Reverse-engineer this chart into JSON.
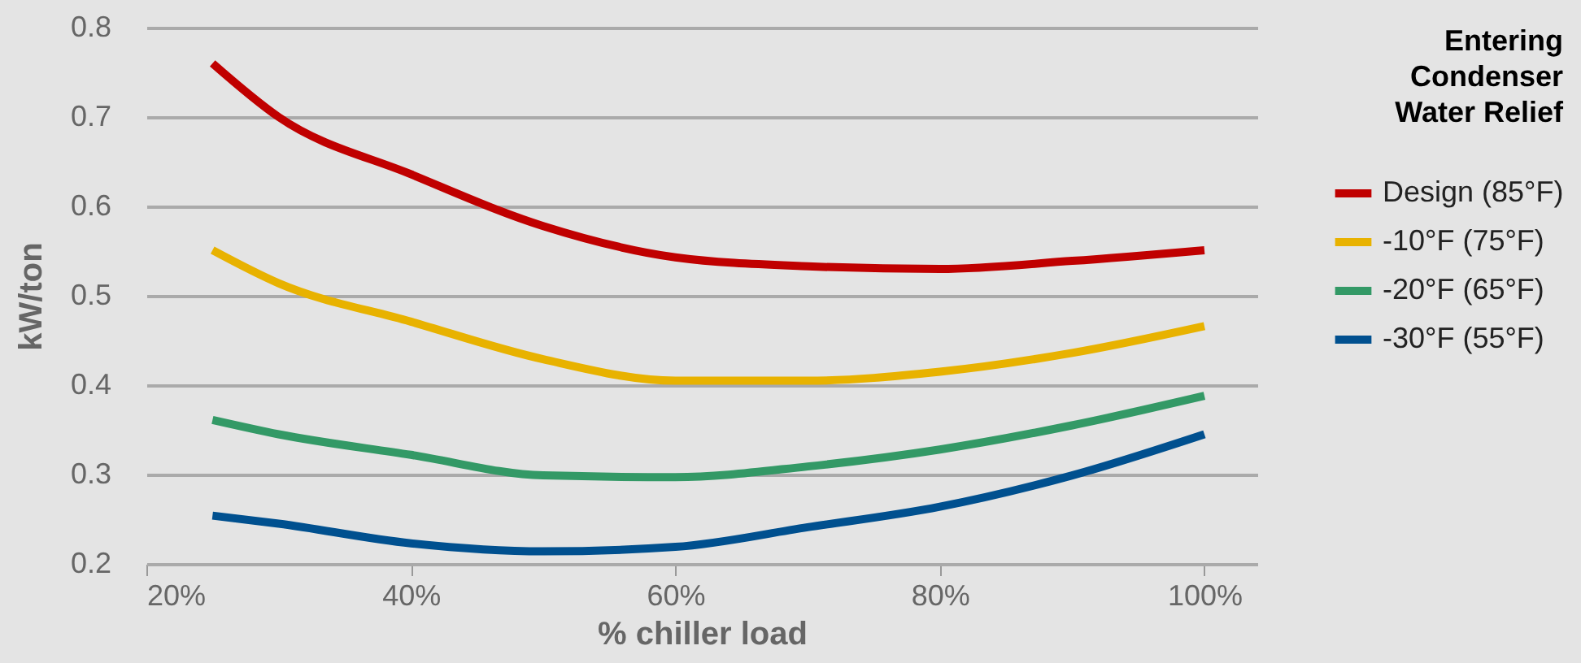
{
  "chart_data": {
    "type": "line",
    "xlabel": "% chiller load",
    "ylabel": "kW/ton",
    "legend_title": "Entering\nCondenser\nWater Relief",
    "x": [
      25,
      30,
      40,
      50,
      60,
      70,
      80,
      90,
      100
    ],
    "series": [
      {
        "name": "Design (85°F)",
        "color": "#c00000",
        "values": [
          0.76,
          0.7,
          0.636,
          0.578,
          0.543,
          0.533,
          0.53,
          0.539,
          0.551
        ]
      },
      {
        "name": "-10°F  (75°F)",
        "color": "#e8b200",
        "values": [
          0.551,
          0.514,
          0.471,
          0.429,
          0.405,
          0.405,
          0.415,
          0.436,
          0.466
        ]
      },
      {
        "name": "-20°F  (65°F)",
        "color": "#339966",
        "values": [
          0.361,
          0.345,
          0.322,
          0.299,
          0.297,
          0.309,
          0.328,
          0.355,
          0.388
        ]
      },
      {
        "name": "-30°F  (55°F)",
        "color": "#00508f",
        "values": [
          0.254,
          0.245,
          0.223,
          0.214,
          0.219,
          0.241,
          0.264,
          0.299,
          0.345
        ]
      }
    ],
    "xlim": [
      20,
      104
    ],
    "xticks": [
      {
        "value": 20,
        "label": "20%"
      },
      {
        "value": 40,
        "label": "40%"
      },
      {
        "value": 60,
        "label": "60%"
      },
      {
        "value": 80,
        "label": "80%"
      },
      {
        "value": 100,
        "label": "100%"
      }
    ],
    "ylim": [
      0.2,
      0.8
    ],
    "yticks": [
      0.2,
      0.3,
      0.4,
      0.5,
      0.6,
      0.7,
      0.8
    ],
    "grid": "y",
    "legend": "right",
    "marker": "none",
    "line_style": "solid"
  }
}
